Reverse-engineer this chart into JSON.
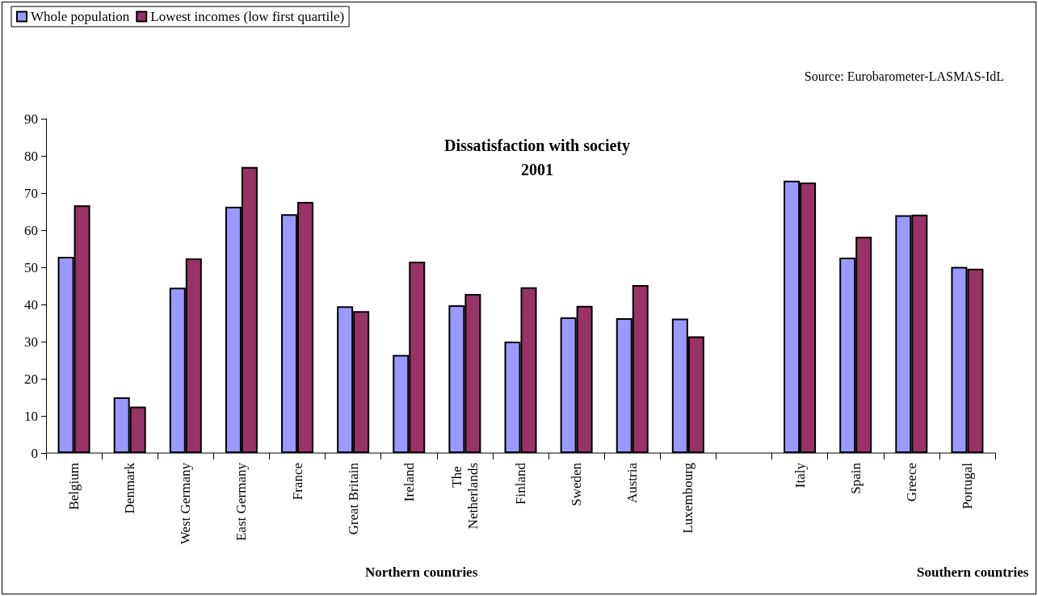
{
  "chart_data": {
    "type": "bar",
    "title": "Dissatisfaction with society\n2001",
    "categories": [
      "Belgium",
      "Denmark",
      "West Germany",
      "East Germany",
      "France",
      "Great Britain",
      "Ireland",
      "The Netherlands",
      "Finland",
      "Sweden",
      "Austria",
      "Luxembourg",
      null,
      "Italy",
      "Spain",
      "Greece",
      "Portugal"
    ],
    "series": [
      {
        "name": "Whole population",
        "color": "#9999ff",
        "values": [
          52.8,
          15,
          44.5,
          66.3,
          64.3,
          39.5,
          26.4,
          39.8,
          30,
          36.5,
          36.3,
          36.2,
          null,
          73.3,
          52.6,
          64,
          50.1
        ]
      },
      {
        "name": "Lowest incomes (low first quartile)",
        "color": "#993366",
        "values": [
          66.7,
          12.5,
          52.4,
          77,
          67.6,
          38.2,
          51.5,
          42.8,
          44.6,
          39.6,
          45.2,
          31.4,
          null,
          72.8,
          58.2,
          64.2,
          49.6
        ]
      }
    ],
    "ylim": [
      0,
      90
    ],
    "yticks": [
      0,
      10,
      20,
      30,
      40,
      50,
      60,
      70,
      80,
      90
    ],
    "grid": false,
    "legend": "top left",
    "annotations": [
      "Source: Eurobarometer-LASMAS-IdL",
      "Northern countries",
      "Southern countries"
    ]
  }
}
